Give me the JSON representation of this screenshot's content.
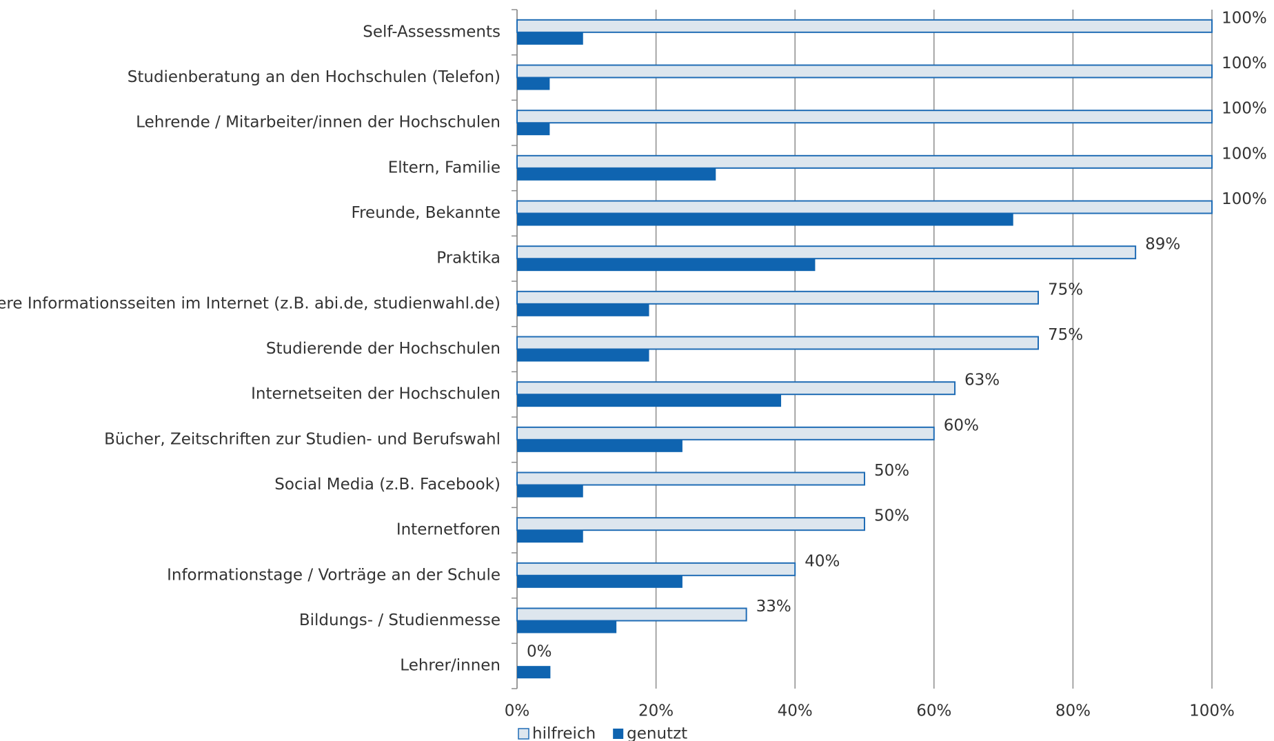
{
  "chart_data": {
    "type": "bar",
    "orientation": "horizontal",
    "categories": [
      "Self-Assessments",
      "Studienberatung an den Hochschulen (Telefon)",
      "Lehrende / Mitarbeiter/innen der Hochschulen",
      "Eltern, Familie",
      "Freunde, Bekannte",
      "Praktika",
      "Andere Informationsseiten im Internet (z.B. abi.de, studienwahl.de)",
      "Studierende der Hochschulen",
      "Internetseiten der Hochschulen",
      "Bücher, Zeitschriften zur Studien- und Berufswahl",
      "Social Media (z.B. Facebook)",
      "Internetforen",
      "Informationstage / Vorträge an der Schule",
      "Bildungs- / Studienmesse",
      "Lehrer/innen"
    ],
    "series": [
      {
        "name": "hilfreich",
        "color": "#dde6ee",
        "edge": "#1f6cb5",
        "values": [
          100,
          100,
          100,
          100,
          100,
          89,
          75,
          75,
          63,
          60,
          50,
          50,
          40,
          33,
          0
        ],
        "value_labels": [
          "100%",
          "100%",
          "100%",
          "100%",
          "100%",
          "89%",
          "75%",
          "75%",
          "63%",
          "60%",
          "50%",
          "50%",
          "40%",
          "33%",
          "0%"
        ]
      },
      {
        "name": "genutzt",
        "color": "#0f64b0",
        "values": [
          9.5,
          4.7,
          4.7,
          28.6,
          71.4,
          42.9,
          19,
          19,
          38,
          23.8,
          9.5,
          9.5,
          23.8,
          14.3,
          4.8
        ]
      }
    ],
    "xlim": [
      0,
      100
    ],
    "xticks": [
      {
        "value": 0,
        "label": "0%"
      },
      {
        "value": 20,
        "label": "20%"
      },
      {
        "value": 40,
        "label": "40%"
      },
      {
        "value": 60,
        "label": "60%"
      },
      {
        "value": 80,
        "label": "80%"
      },
      {
        "value": 100,
        "label": "100%"
      }
    ],
    "grid": true,
    "legend": "bottom-left"
  }
}
